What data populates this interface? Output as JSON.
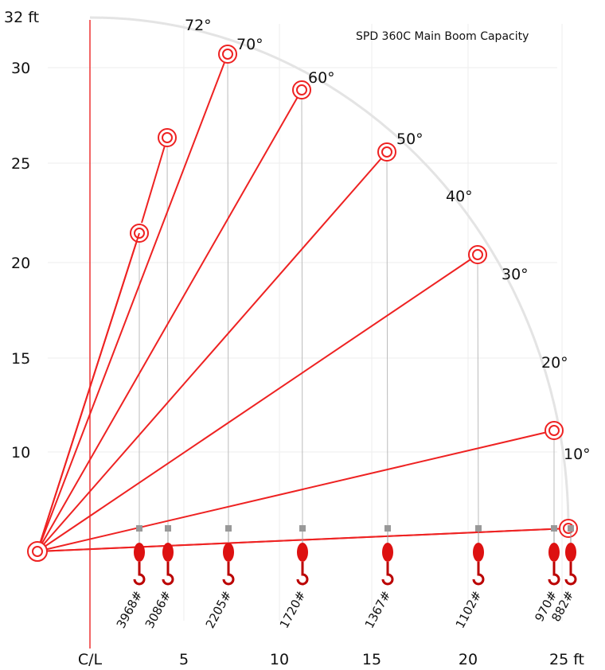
{
  "title": "SPD 360C Main Boom Capacity",
  "y_axis": {
    "labels": [
      "32 ft",
      "30",
      "25",
      "20",
      "15",
      "10"
    ]
  },
  "x_axis": {
    "labels": [
      "C/L",
      "5",
      "10",
      "15",
      "20",
      "25 ft"
    ]
  },
  "angles": [
    "72°",
    "70°",
    "60°",
    "50°",
    "40°",
    "30°",
    "20°",
    "10°"
  ],
  "capacities": [
    "3968#",
    "3086#",
    "2205#",
    "1720#",
    "1367#",
    "1102#",
    "970#",
    "882#"
  ]
}
